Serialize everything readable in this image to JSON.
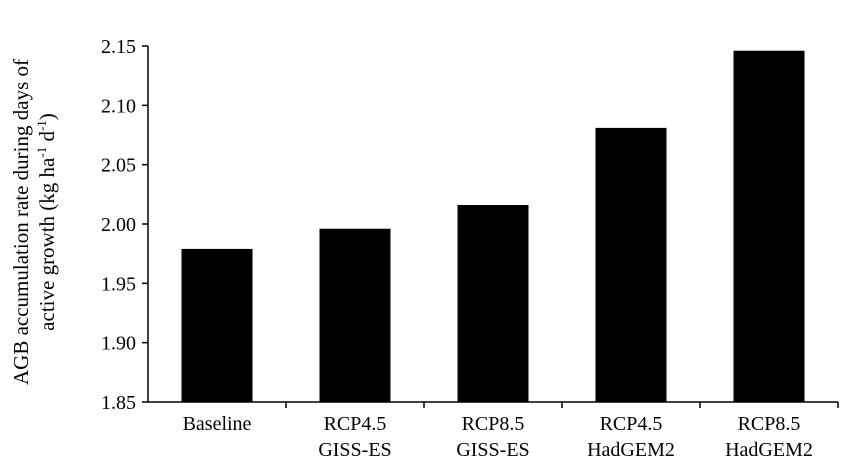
{
  "chart_data": {
    "type": "bar",
    "title": "",
    "xlabel": "",
    "ylabel_line1": "AGB accumulation rate during days of",
    "ylabel_line2_main": "active growth (kg ha",
    "ylabel_line2_sup1": "-1",
    "ylabel_line2_mid": " d",
    "ylabel_line2_sup2": "-1",
    "ylabel_line2_end": ")",
    "categories": [
      [
        "Baseline"
      ],
      [
        "RCP4.5",
        "GISS-ES"
      ],
      [
        "RCP8.5",
        "GISS-ES"
      ],
      [
        "RCP4.5",
        "HadGEM2"
      ],
      [
        "RCP8.5",
        "HadGEM2"
      ]
    ],
    "values": [
      1.979,
      1.996,
      2.016,
      2.081,
      2.146
    ],
    "ylim": [
      1.85,
      2.15
    ],
    "yticks": [
      "1.85",
      "1.90",
      "1.95",
      "2.00",
      "2.05",
      "2.10",
      "2.15"
    ],
    "bar_color": "#000000",
    "grid": false,
    "legend": "none"
  }
}
